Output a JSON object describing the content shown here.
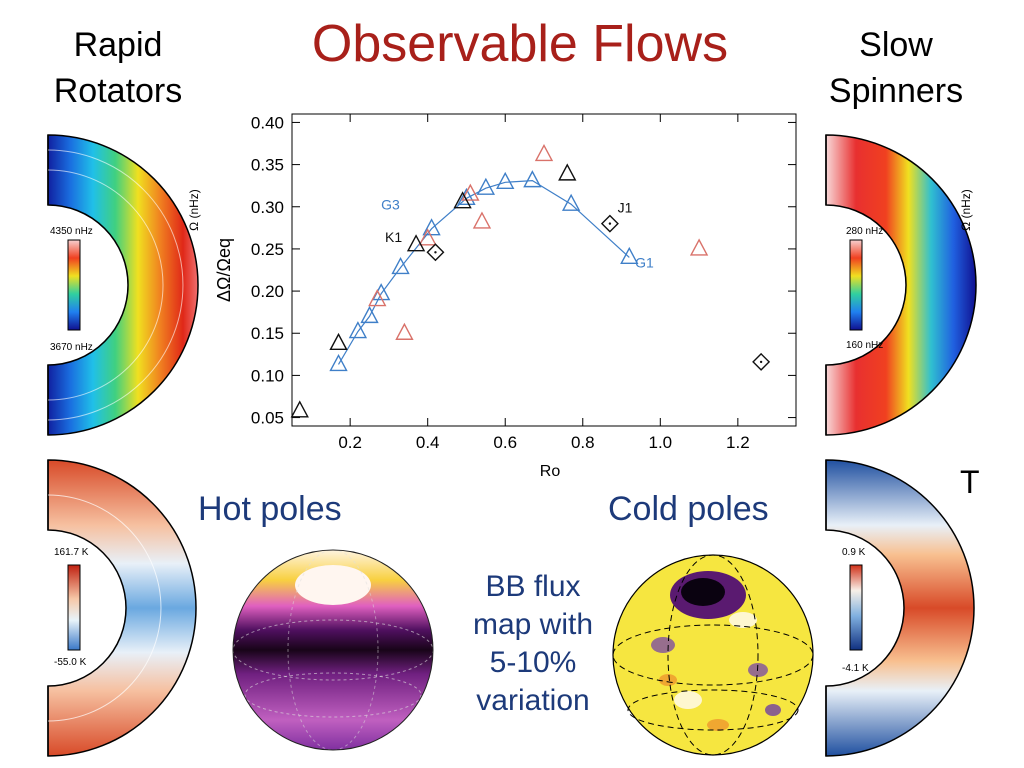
{
  "title": "Observable Flows",
  "left_heading": [
    "Rapid",
    "Rotators"
  ],
  "right_heading": [
    "Slow",
    "Spinners"
  ],
  "hot_poles": "Hot poles",
  "cold_poles": "Cold poles",
  "bb_flux": [
    "BB flux",
    "map with",
    "5-10%",
    "variation"
  ],
  "t_label": "T",
  "panels": {
    "rapid_omega": {
      "axis_label": "Ω (nHz)",
      "max": "4350  nHz",
      "min": "3670  nHz"
    },
    "slow_omega": {
      "axis_label": "Ω (nHz)",
      "max": "280  nHz",
      "min": "160  nHz"
    },
    "rapid_temp": {
      "max": "161.7 K",
      "min": "-55.0 K"
    },
    "slow_temp": {
      "max": "0.9 K",
      "min": "-4.1 K"
    }
  },
  "chart_data": {
    "type": "scatter",
    "xlabel": "Ro",
    "ylabel": "ΔΩ/Ωeq",
    "xlim": [
      0.05,
      1.35
    ],
    "ylim": [
      0.04,
      0.41
    ],
    "xticks": [
      "0.2",
      "0.4",
      "0.6",
      "0.8",
      "1.0",
      "1.2"
    ],
    "yticks": [
      "0.05",
      "0.10",
      "0.15",
      "0.20",
      "0.25",
      "0.30",
      "0.35",
      "0.40"
    ],
    "colors": {
      "blue": "#3f7fc8",
      "red": "#d9726a",
      "black": "#111111"
    },
    "series": [
      {
        "color": "blue",
        "marker": "triangle",
        "line": true,
        "points": [
          [
            0.17,
            0.113
          ],
          [
            0.22,
            0.152
          ],
          [
            0.25,
            0.17
          ],
          [
            0.28,
            0.197
          ],
          [
            0.33,
            0.228
          ],
          [
            0.41,
            0.274
          ],
          [
            0.5,
            0.31
          ],
          [
            0.55,
            0.322
          ],
          [
            0.6,
            0.329
          ],
          [
            0.67,
            0.331
          ],
          [
            0.77,
            0.303
          ],
          [
            0.92,
            0.24
          ]
        ]
      },
      {
        "color": "red",
        "marker": "triangle",
        "line": false,
        "points": [
          [
            0.27,
            0.19
          ],
          [
            0.34,
            0.15
          ],
          [
            0.4,
            0.262
          ],
          [
            0.51,
            0.315
          ],
          [
            0.54,
            0.282
          ],
          [
            0.7,
            0.362
          ],
          [
            1.1,
            0.25
          ]
        ]
      },
      {
        "color": "black",
        "marker": "triangle",
        "line": false,
        "points": [
          [
            0.07,
            0.058
          ],
          [
            0.17,
            0.138
          ],
          [
            0.37,
            0.255
          ],
          [
            0.49,
            0.306
          ],
          [
            0.76,
            0.339
          ]
        ]
      },
      {
        "color": "black",
        "marker": "diamond",
        "line": false,
        "points": [
          [
            0.42,
            0.246
          ],
          [
            0.87,
            0.28
          ],
          [
            1.26,
            0.116
          ]
        ]
      }
    ],
    "annotations": [
      {
        "text": "G3",
        "x": 0.28,
        "y": 0.297,
        "color": "blue"
      },
      {
        "text": "K1",
        "x": 0.29,
        "y": 0.258,
        "color": "black"
      },
      {
        "text": "J1",
        "x": 0.89,
        "y": 0.293,
        "color": "black"
      },
      {
        "text": "G1",
        "x": 0.935,
        "y": 0.228,
        "color": "blue"
      }
    ]
  }
}
